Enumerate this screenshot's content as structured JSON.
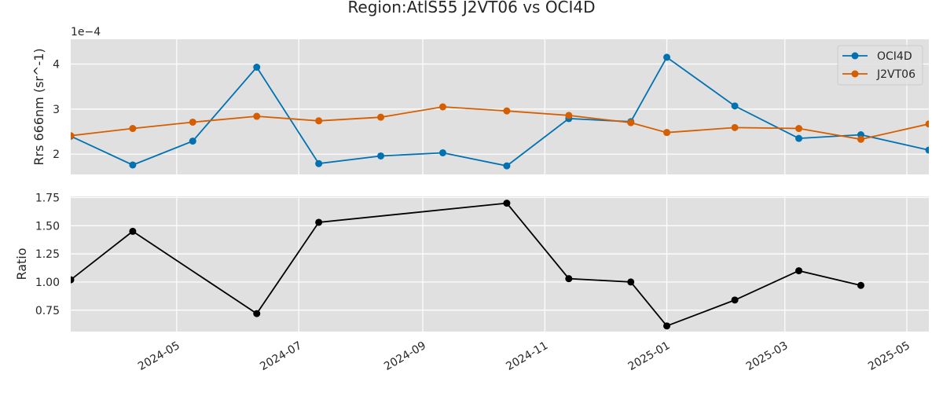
{
  "title": "Region:AtlS55 J2VT06 vs OCI4D",
  "colors": {
    "oci4d": "#0072b2",
    "j2vt06": "#d55e00",
    "ratio": "#000000",
    "panel_bg": "#e0e0e0",
    "grid": "#ffffff"
  },
  "chart_data": [
    {
      "type": "line",
      "ylabel": "Rrs 666nm (sr^-1)",
      "offset_text": "1e−4",
      "scale": 0.0001,
      "x_range": [
        "2024-03-09",
        "2025-05-12"
      ],
      "ylim": [
        1.55,
        4.55
      ],
      "yticks": [
        2,
        3,
        4
      ],
      "ytick_labels": [
        "2",
        "3",
        "4"
      ],
      "grid": true,
      "legend_position": "top-right",
      "series": [
        {
          "name": "OCI4D",
          "color_key": "oci4d",
          "x": [
            "2024-03-09",
            "2024-04-09",
            "2024-05-09",
            "2024-06-10",
            "2024-07-11",
            "2024-08-11",
            "2024-09-11",
            "2024-10-13",
            "2024-11-13",
            "2024-12-14",
            "2025-01-01",
            "2025-02-04",
            "2025-03-08",
            "2025-04-08",
            "2025-05-12"
          ],
          "y": [
            2.4,
            1.76,
            2.29,
            3.93,
            1.79,
            1.96,
            2.03,
            1.74,
            2.79,
            2.72,
            4.15,
            3.07,
            2.35,
            2.43,
            2.09
          ]
        },
        {
          "name": "J2VT06",
          "color_key": "j2vt06",
          "x": [
            "2024-03-09",
            "2024-04-09",
            "2024-05-09",
            "2024-06-10",
            "2024-07-11",
            "2024-08-11",
            "2024-09-11",
            "2024-10-13",
            "2024-11-13",
            "2024-12-14",
            "2025-01-01",
            "2025-02-04",
            "2025-03-08",
            "2025-04-08",
            "2025-05-12"
          ],
          "y": [
            2.41,
            2.57,
            2.71,
            2.84,
            2.74,
            2.82,
            3.05,
            2.96,
            2.86,
            2.7,
            2.48,
            2.59,
            2.57,
            2.33,
            2.67
          ]
        }
      ]
    },
    {
      "type": "line",
      "ylabel": "Ratio",
      "x_range": [
        "2024-03-09",
        "2025-05-12"
      ],
      "ylim": [
        0.56,
        1.76
      ],
      "yticks": [
        0.75,
        1.0,
        1.25,
        1.5,
        1.75
      ],
      "ytick_labels": [
        "0.75",
        "1.00",
        "1.25",
        "1.50",
        "1.75"
      ],
      "grid": true,
      "series": [
        {
          "color_key": "ratio",
          "x": [
            "2024-03-09",
            "2024-04-09",
            "2024-06-10",
            "2024-07-11",
            "2024-10-13",
            "2024-11-13",
            "2024-12-14",
            "2025-01-01",
            "2025-02-04",
            "2025-03-08",
            "2025-04-08"
          ],
          "y": [
            1.02,
            1.45,
            0.72,
            1.53,
            1.7,
            1.03,
            1.0,
            0.61,
            0.84,
            1.1,
            0.97
          ]
        }
      ]
    }
  ],
  "xticks": [
    "2024-05-01",
    "2024-07-01",
    "2024-09-01",
    "2024-11-01",
    "2025-01-01",
    "2025-03-01",
    "2025-05-01"
  ],
  "xtick_labels": [
    "2024-05",
    "2024-07",
    "2024-09",
    "2024-11",
    "2025-01",
    "2025-03",
    "2025-05"
  ]
}
